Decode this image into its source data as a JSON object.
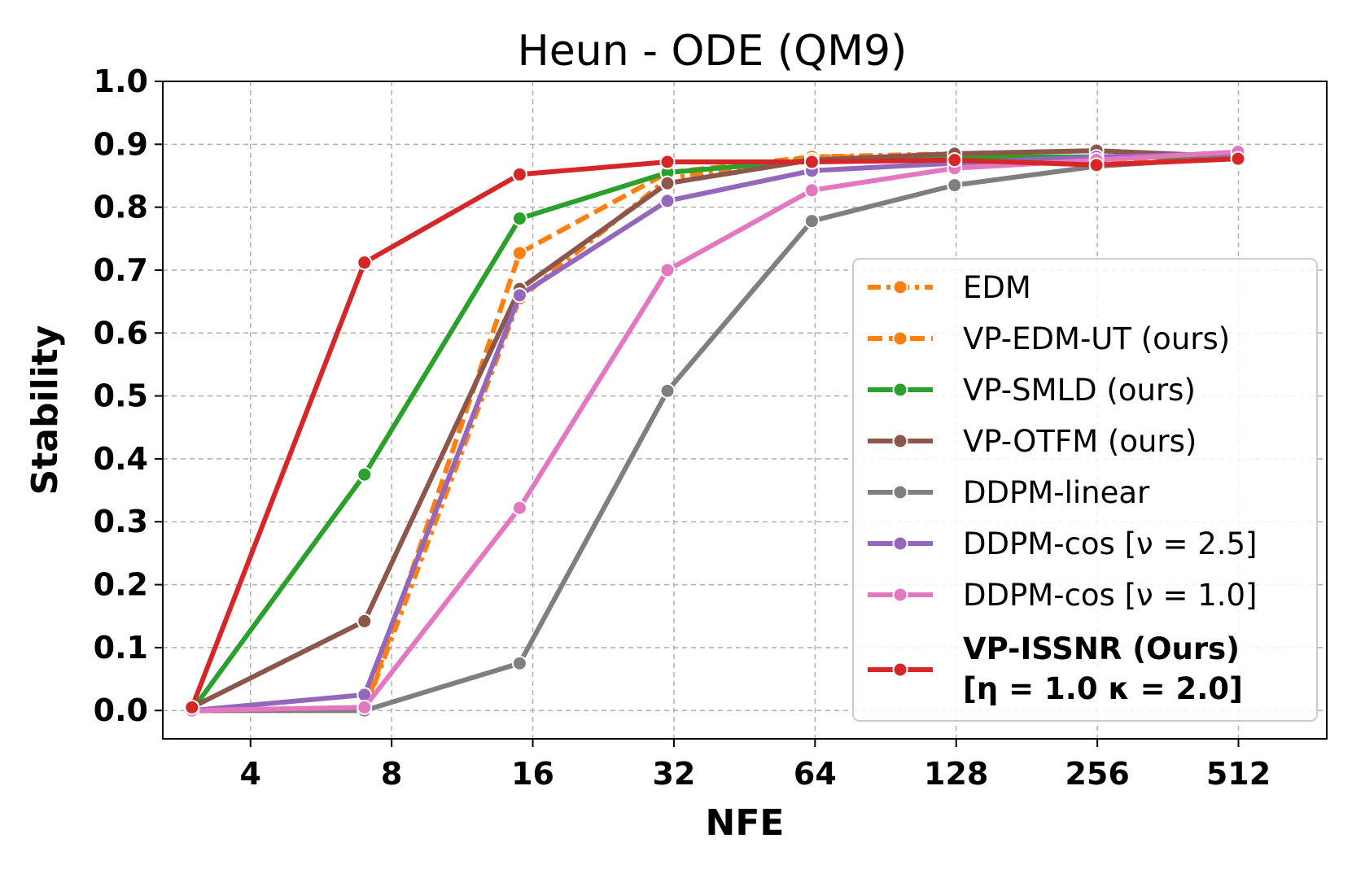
{
  "chart_data": {
    "type": "line",
    "title": "Heun - ODE (QM9)",
    "xlabel": "NFE",
    "ylabel": "Stability",
    "x_scale": "log2",
    "x_ticks": [
      4,
      8,
      16,
      32,
      64,
      128,
      256,
      512
    ],
    "x_tick_labels": [
      "4",
      "8",
      "16",
      "32",
      "64",
      "128",
      "256",
      "512"
    ],
    "xlim": [
      2.6,
      790
    ],
    "ylim": [
      -0.045,
      1.0
    ],
    "y_ticks": [
      0.0,
      0.1,
      0.2,
      0.3,
      0.4,
      0.5,
      0.6,
      0.7,
      0.8,
      0.9,
      1.0
    ],
    "y_tick_labels": [
      "0.0",
      "0.1",
      "0.2",
      "0.3",
      "0.4",
      "0.5",
      "0.6",
      "0.7",
      "0.8",
      "0.9",
      "1.0"
    ],
    "grid": true,
    "legend_position": "lower-right",
    "series": [
      {
        "name": "EDM",
        "color": "#ff7f0e",
        "dash": "dashdot",
        "x": [
          3,
          7,
          15,
          31,
          63,
          127,
          255,
          511
        ],
        "values": [
          0.0,
          0.0,
          0.655,
          0.845,
          0.88,
          0.885,
          0.89,
          0.875
        ]
      },
      {
        "name": "VP-EDM-UT (ours)",
        "color": "#ff7f0e",
        "dash": "dashed",
        "x": [
          3,
          7,
          15,
          31,
          63,
          127,
          255,
          511
        ],
        "values": [
          0.0,
          0.0,
          0.727,
          0.855,
          0.88,
          0.88,
          0.875,
          0.877
        ]
      },
      {
        "name": "VP-SMLD (ours)",
        "color": "#2ca02c",
        "dash": "solid",
        "x": [
          3,
          7,
          15,
          31,
          63,
          127,
          255,
          511
        ],
        "values": [
          0.0,
          0.375,
          0.782,
          0.855,
          0.875,
          0.88,
          0.88,
          0.88
        ]
      },
      {
        "name": "VP-OTFM (ours)",
        "color": "#8c564b",
        "dash": "solid",
        "x": [
          3,
          7,
          15,
          31,
          63,
          127,
          255,
          511
        ],
        "values": [
          0.005,
          0.142,
          0.67,
          0.838,
          0.875,
          0.885,
          0.89,
          0.88
        ]
      },
      {
        "name": "DDPM-linear",
        "color": "#7f7f7f",
        "dash": "solid",
        "x": [
          3,
          7,
          15,
          31,
          63,
          127,
          255,
          511
        ],
        "values": [
          0.0,
          0.0,
          0.075,
          0.508,
          0.778,
          0.835,
          0.865,
          0.88
        ]
      },
      {
        "name": "DDPM-cos [ν = 2.5]",
        "color": "#9467bd",
        "dash": "solid",
        "x": [
          3,
          7,
          15,
          31,
          63,
          127,
          255,
          511
        ],
        "values": [
          0.0,
          0.025,
          0.66,
          0.81,
          0.858,
          0.87,
          0.88,
          0.885
        ]
      },
      {
        "name": "DDPM-cos [ν = 1.0]",
        "color": "#e377c2",
        "dash": "solid",
        "x": [
          3,
          7,
          15,
          31,
          63,
          127,
          255,
          511
        ],
        "values": [
          0.0,
          0.005,
          0.322,
          0.7,
          0.827,
          0.862,
          0.875,
          0.888
        ]
      },
      {
        "name": "VP-ISSNR (Ours)",
        "name_line2": "[η = 1.0 κ = 2.0]",
        "bold": true,
        "color": "#d62728",
        "dash": "solid",
        "x": [
          3,
          7,
          15,
          31,
          63,
          127,
          255,
          511
        ],
        "values": [
          0.005,
          0.712,
          0.852,
          0.872,
          0.872,
          0.875,
          0.867,
          0.877
        ]
      }
    ]
  }
}
